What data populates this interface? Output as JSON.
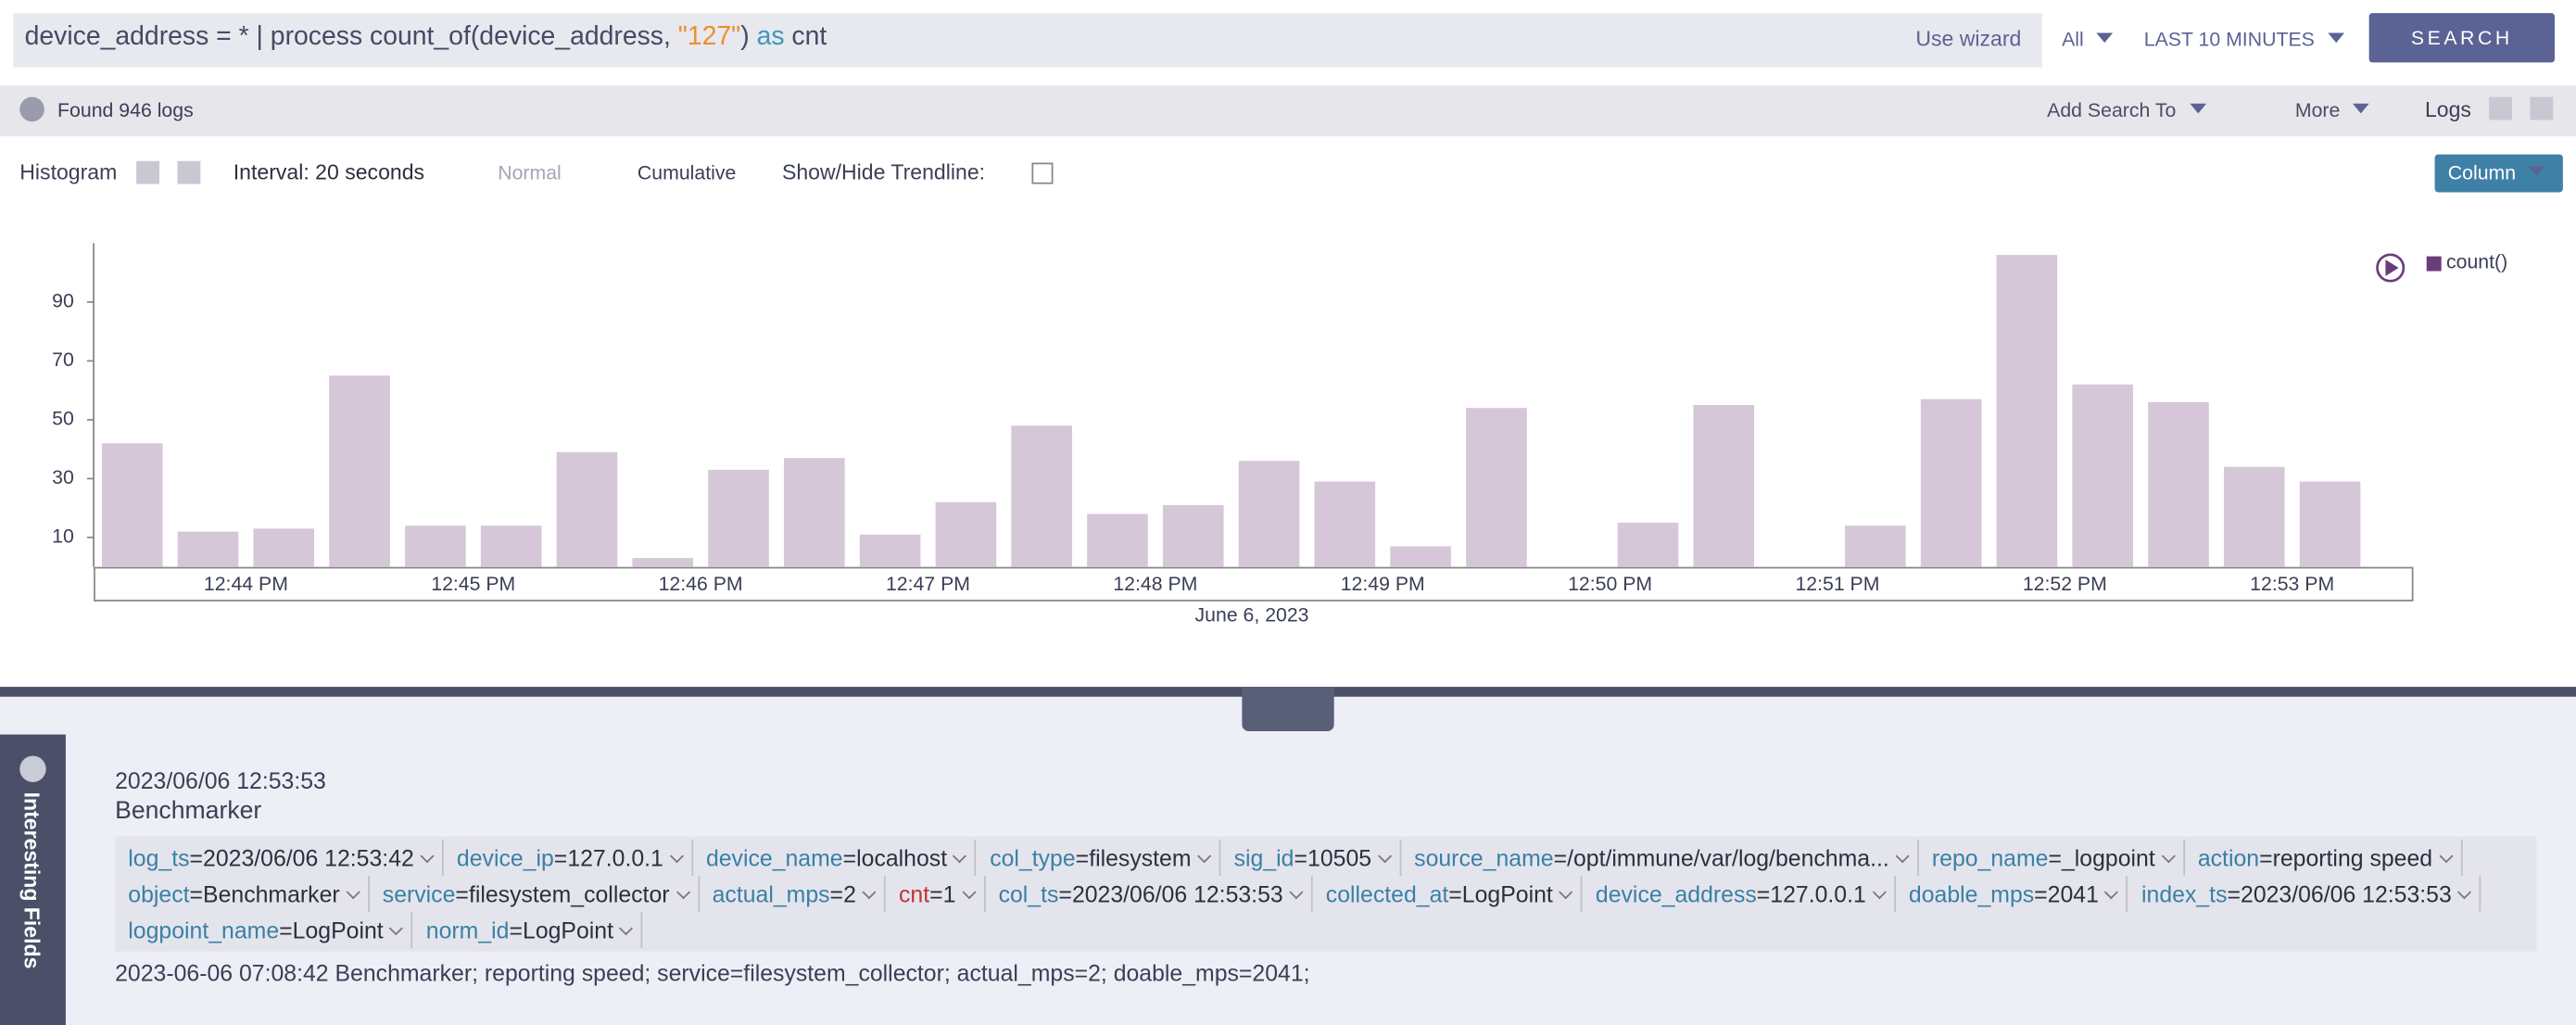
{
  "search": {
    "query": [
      "device_address = * | process count_of(device_address, ",
      "\"127\"",
      ") ",
      "as",
      " cnt"
    ],
    "wizard": "Use wizard",
    "repo": "All",
    "time_range": "LAST 10 MINUTES",
    "button": "SEARCH"
  },
  "toolbar": {
    "found": "Found 946 logs",
    "add_search": "Add Search To",
    "more": "More",
    "logs": "Logs"
  },
  "chart_toolbar": {
    "histogram": "Histogram",
    "interval": "Interval: 20 seconds",
    "normal": "Normal",
    "cumulative": "Cumulative",
    "trendline": "Show/Hide Trendline:",
    "chart_kind": "Column"
  },
  "chart_data": {
    "type": "bar",
    "xlabel": "June 6, 2023",
    "categories": [
      null,
      null,
      null,
      null,
      null,
      null,
      null,
      null,
      null,
      null,
      null,
      null,
      null,
      null,
      null,
      null,
      null,
      null,
      null,
      null,
      null,
      null,
      null,
      null,
      null,
      null,
      null,
      null,
      null,
      null
    ],
    "xtick_labels": [
      "12:44 PM",
      "12:45 PM",
      "12:46 PM",
      "12:47 PM",
      "12:48 PM",
      "12:49 PM",
      "12:50 PM",
      "12:51 PM",
      "12:52 PM",
      "12:53 PM"
    ],
    "series": [
      {
        "name": "count()",
        "color": "#d5c7d8",
        "values": [
          42,
          12,
          13,
          65,
          14,
          14,
          39,
          3,
          33,
          37,
          11,
          22,
          48,
          18,
          21,
          36,
          29,
          7,
          54,
          0,
          15,
          55,
          0,
          14,
          57,
          106,
          62,
          56,
          34,
          29
        ]
      }
    ],
    "ylim": [
      0,
      110
    ],
    "yticks": [
      10,
      30,
      50,
      70,
      90
    ],
    "grid": false,
    "legend": "top-right"
  },
  "sidebar": {
    "label": "Interesting Fields"
  },
  "log": {
    "time": "2023/06/06 12:53:53",
    "source": "Benchmarker",
    "separator": "=",
    "fields": [
      {
        "key": "log_ts",
        "value": "2023/06/06 12:53:42"
      },
      {
        "key": "device_ip",
        "value": "127.0.0.1"
      },
      {
        "key": "device_name",
        "value": "localhost"
      },
      {
        "key": "col_type",
        "value": "filesystem"
      },
      {
        "key": "sig_id",
        "value": "10505"
      },
      {
        "key": "source_name",
        "value": "/opt/immune/var/log/benchma..."
      },
      {
        "key": "repo_name",
        "value": "_logpoint"
      },
      {
        "key": "action",
        "value": "reporting speed"
      },
      {
        "key": "object",
        "value": "Benchmarker"
      },
      {
        "key": "service",
        "value": "filesystem_collector"
      },
      {
        "key": "actual_mps",
        "value": "2"
      },
      {
        "key": "cnt",
        "value": "1"
      },
      {
        "key": "col_ts",
        "value": "2023/06/06 12:53:53"
      },
      {
        "key": "collected_at",
        "value": "LogPoint"
      },
      {
        "key": "device_address",
        "value": "127.0.0.1"
      },
      {
        "key": "doable_mps",
        "value": "2041"
      },
      {
        "key": "index_ts",
        "value": "2023/06/06 12:53:53"
      },
      {
        "key": "logpoint_name",
        "value": "LogPoint"
      },
      {
        "key": "norm_id",
        "value": "LogPoint"
      }
    ],
    "message": "2023-06-06 07:08:42 Benchmarker; reporting speed; service=filesystem_collector; actual_mps=2; doable_mps=2041;"
  }
}
